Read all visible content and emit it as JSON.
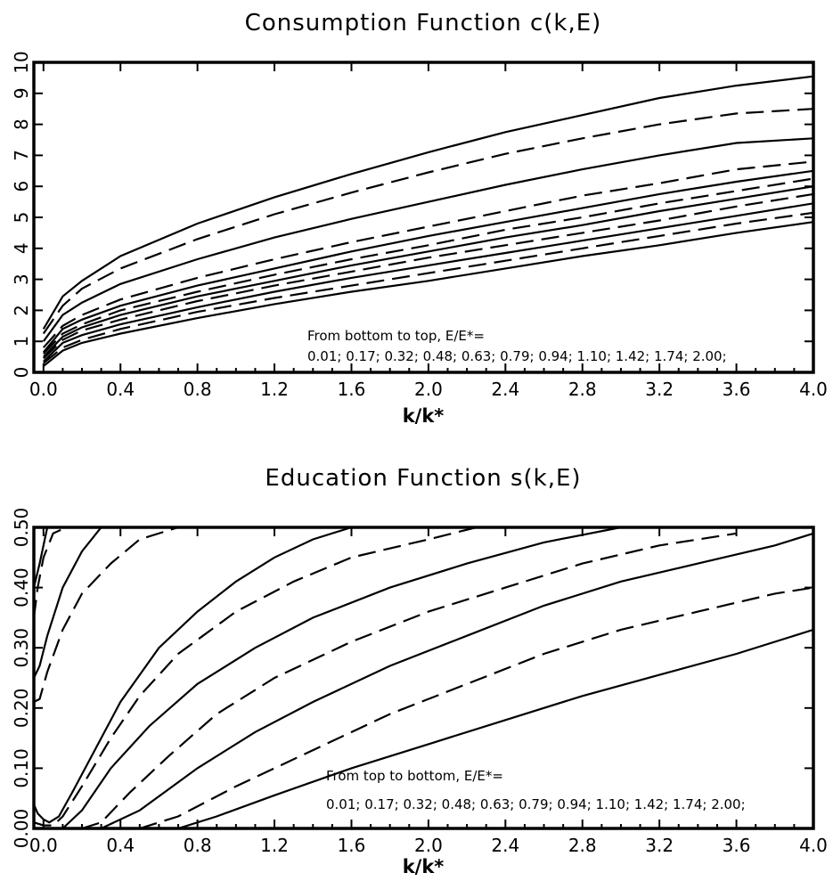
{
  "chart_data": [
    {
      "type": "line",
      "title": "Consumption Function c(k,E)",
      "xlabel": "k/k*",
      "ylabel": "",
      "xlim": [
        -0.05,
        4.0
      ],
      "ylim": [
        0,
        10
      ],
      "xticks": [
        "0.0",
        "0.4",
        "0.8",
        "1.2",
        "1.6",
        "2.0",
        "2.4",
        "2.8",
        "3.2",
        "3.6",
        "4.0"
      ],
      "yticks": [
        "0",
        "1",
        "2",
        "3",
        "4",
        "5",
        "6",
        "7",
        "8",
        "9",
        "10"
      ],
      "annotation_line1": "From bottom to top, E/E*=",
      "annotation_line2": "0.01; 0.17; 0.32; 0.48; 0.63; 0.79; 0.94; 1.10; 1.42; 1.74; 2.00;",
      "line_styles": [
        "solid",
        "dashed",
        "solid",
        "dashed",
        "solid",
        "dashed",
        "solid",
        "dashed",
        "solid",
        "dashed",
        "solid"
      ],
      "x": [
        0.0,
        0.1,
        0.2,
        0.4,
        0.8,
        1.2,
        1.6,
        2.0,
        2.4,
        2.8,
        3.2,
        3.6,
        4.0
      ],
      "series": [
        {
          "values": [
            0.2,
            0.7,
            0.95,
            1.25,
            1.75,
            2.2,
            2.6,
            2.95,
            3.35,
            3.75,
            4.1,
            4.5,
            4.85
          ]
        },
        {
          "values": [
            0.3,
            0.8,
            1.05,
            1.4,
            1.95,
            2.4,
            2.8,
            3.2,
            3.6,
            4.0,
            4.4,
            4.8,
            5.15
          ]
        },
        {
          "values": [
            0.35,
            0.95,
            1.2,
            1.55,
            2.1,
            2.6,
            3.05,
            3.45,
            3.85,
            4.25,
            4.65,
            5.05,
            5.45
          ]
        },
        {
          "values": [
            0.45,
            1.05,
            1.35,
            1.7,
            2.3,
            2.8,
            3.25,
            3.7,
            4.1,
            4.5,
            4.9,
            5.35,
            5.75
          ]
        },
        {
          "values": [
            0.5,
            1.15,
            1.45,
            1.85,
            2.45,
            2.95,
            3.45,
            3.9,
            4.35,
            4.75,
            5.2,
            5.6,
            6.0
          ]
        },
        {
          "values": [
            0.6,
            1.25,
            1.55,
            2.0,
            2.6,
            3.15,
            3.65,
            4.1,
            4.6,
            5.0,
            5.45,
            5.85,
            6.25
          ]
        },
        {
          "values": [
            0.65,
            1.4,
            1.7,
            2.15,
            2.8,
            3.35,
            3.9,
            4.4,
            4.85,
            5.3,
            5.75,
            6.15,
            6.5
          ]
        },
        {
          "values": [
            0.8,
            1.5,
            1.85,
            2.35,
            3.05,
            3.65,
            4.2,
            4.7,
            5.2,
            5.7,
            6.1,
            6.55,
            6.8
          ]
        },
        {
          "values": [
            1.0,
            1.85,
            2.25,
            2.85,
            3.65,
            4.35,
            4.95,
            5.5,
            6.05,
            6.55,
            7.0,
            7.4,
            7.55
          ]
        },
        {
          "values": [
            1.25,
            2.15,
            2.7,
            3.35,
            4.3,
            5.1,
            5.8,
            6.45,
            7.05,
            7.55,
            8.0,
            8.35,
            8.5
          ]
        },
        {
          "values": [
            1.4,
            2.45,
            2.95,
            3.75,
            4.8,
            5.65,
            6.4,
            7.1,
            7.75,
            8.3,
            8.85,
            9.25,
            9.55
          ]
        }
      ]
    },
    {
      "type": "line",
      "title": "Education Function s(k,E)",
      "xlabel": "k/k*",
      "ylabel": "",
      "xlim": [
        -0.05,
        4.0
      ],
      "ylim": [
        0.0,
        0.5
      ],
      "xticks": [
        "0.0",
        "0.4",
        "0.8",
        "1.2",
        "1.6",
        "2.0",
        "2.4",
        "2.8",
        "3.2",
        "3.6",
        "4.0"
      ],
      "yticks": [
        "0.00",
        "0.10",
        "0.20",
        "0.30",
        "0.40",
        "0.50"
      ],
      "annotation_line1": "From top to bottom, E/E*=",
      "annotation_line2": "0.01; 0.17; 0.32; 0.48; 0.63; 0.79; 0.94; 1.10; 1.42; 1.74; 2.00;",
      "line_styles": [
        "solid",
        "dashed",
        "solid",
        "dashed",
        "solid",
        "dashed",
        "solid",
        "dashed",
        "solid",
        "dashed",
        "solid"
      ],
      "series": [
        {
          "points": [
            [
              -0.05,
              0.4
            ],
            [
              -0.02,
              0.44
            ],
            [
              0.0,
              0.47
            ],
            [
              0.02,
              0.5
            ]
          ]
        },
        {
          "points": [
            [
              -0.05,
              0.35
            ],
            [
              -0.03,
              0.4
            ],
            [
              0.0,
              0.45
            ],
            [
              0.05,
              0.49
            ],
            [
              0.12,
              0.5
            ]
          ]
        },
        {
          "points": [
            [
              -0.05,
              0.25
            ],
            [
              -0.02,
              0.27
            ],
            [
              0.02,
              0.32
            ],
            [
              0.1,
              0.4
            ],
            [
              0.2,
              0.46
            ],
            [
              0.3,
              0.5
            ]
          ]
        },
        {
          "points": [
            [
              -0.05,
              0.21
            ],
            [
              -0.02,
              0.215
            ],
            [
              0.02,
              0.26
            ],
            [
              0.1,
              0.33
            ],
            [
              0.2,
              0.39
            ],
            [
              0.35,
              0.44
            ],
            [
              0.5,
              0.48
            ],
            [
              0.7,
              0.5
            ]
          ]
        },
        {
          "points": [
            [
              -0.05,
              0.04
            ],
            [
              -0.03,
              0.025
            ],
            [
              0.0,
              0.015
            ],
            [
              0.03,
              0.01
            ],
            [
              0.08,
              0.02
            ],
            [
              0.15,
              0.06
            ],
            [
              0.25,
              0.12
            ],
            [
              0.4,
              0.21
            ],
            [
              0.6,
              0.3
            ],
            [
              0.8,
              0.36
            ],
            [
              1.0,
              0.41
            ],
            [
              1.2,
              0.45
            ],
            [
              1.4,
              0.48
            ],
            [
              1.6,
              0.5
            ]
          ]
        },
        {
          "points": [
            [
              -0.05,
              0.01
            ],
            [
              0.0,
              0.005
            ],
            [
              0.05,
              0.005
            ],
            [
              0.1,
              0.02
            ],
            [
              0.2,
              0.07
            ],
            [
              0.35,
              0.15
            ],
            [
              0.5,
              0.22
            ],
            [
              0.7,
              0.29
            ],
            [
              1.0,
              0.36
            ],
            [
              1.3,
              0.41
            ],
            [
              1.6,
              0.45
            ],
            [
              2.0,
              0.48
            ],
            [
              2.25,
              0.5
            ]
          ]
        },
        {
          "points": [
            [
              -0.05,
              0.0
            ],
            [
              0.1,
              0.0
            ],
            [
              0.2,
              0.03
            ],
            [
              0.35,
              0.1
            ],
            [
              0.55,
              0.17
            ],
            [
              0.8,
              0.24
            ],
            [
              1.1,
              0.3
            ],
            [
              1.4,
              0.35
            ],
            [
              1.8,
              0.4
            ],
            [
              2.2,
              0.44
            ],
            [
              2.6,
              0.475
            ],
            [
              3.0,
              0.5
            ]
          ]
        },
        {
          "points": [
            [
              0.2,
              0.0
            ],
            [
              0.3,
              0.01
            ],
            [
              0.45,
              0.06
            ],
            [
              0.65,
              0.12
            ],
            [
              0.9,
              0.19
            ],
            [
              1.2,
              0.25
            ],
            [
              1.6,
              0.31
            ],
            [
              2.0,
              0.36
            ],
            [
              2.4,
              0.4
            ],
            [
              2.8,
              0.44
            ],
            [
              3.2,
              0.47
            ],
            [
              3.6,
              0.49
            ]
          ]
        },
        {
          "points": [
            [
              0.3,
              0.0
            ],
            [
              0.5,
              0.03
            ],
            [
              0.8,
              0.1
            ],
            [
              1.1,
              0.16
            ],
            [
              1.4,
              0.21
            ],
            [
              1.8,
              0.27
            ],
            [
              2.2,
              0.32
            ],
            [
              2.6,
              0.37
            ],
            [
              3.0,
              0.41
            ],
            [
              3.4,
              0.44
            ],
            [
              3.8,
              0.47
            ],
            [
              4.0,
              0.49
            ]
          ]
        },
        {
          "points": [
            [
              0.5,
              0.0
            ],
            [
              0.7,
              0.02
            ],
            [
              1.0,
              0.07
            ],
            [
              1.4,
              0.13
            ],
            [
              1.8,
              0.19
            ],
            [
              2.2,
              0.24
            ],
            [
              2.6,
              0.29
            ],
            [
              3.0,
              0.33
            ],
            [
              3.4,
              0.36
            ],
            [
              3.8,
              0.39
            ],
            [
              4.0,
              0.4
            ]
          ]
        },
        {
          "points": [
            [
              0.7,
              0.0
            ],
            [
              0.9,
              0.02
            ],
            [
              1.2,
              0.055
            ],
            [
              1.6,
              0.1
            ],
            [
              2.0,
              0.14
            ],
            [
              2.4,
              0.18
            ],
            [
              2.8,
              0.22
            ],
            [
              3.2,
              0.255
            ],
            [
              3.6,
              0.29
            ],
            [
              4.0,
              0.33
            ]
          ]
        }
      ]
    }
  ]
}
